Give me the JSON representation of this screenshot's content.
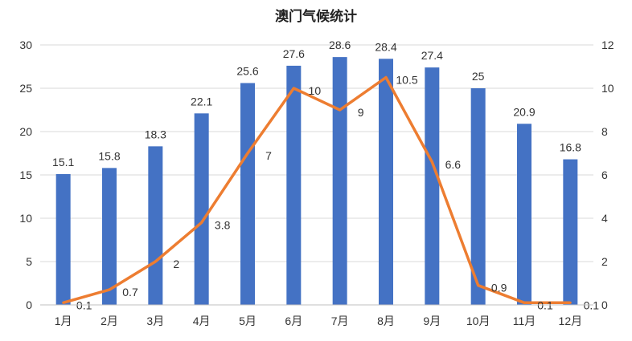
{
  "chart_data": {
    "type": "bar+line",
    "title": "澳门气候统计",
    "categories": [
      "1月",
      "2月",
      "3月",
      "4月",
      "5月",
      "6月",
      "7月",
      "8月",
      "9月",
      "10月",
      "11月",
      "12月"
    ],
    "series": [
      {
        "type": "bar",
        "axis": "left",
        "color": "#4472C4",
        "values": [
          15.1,
          15.8,
          18.3,
          22.1,
          25.6,
          27.6,
          28.6,
          28.4,
          27.4,
          25,
          20.9,
          16.8
        ]
      },
      {
        "type": "line",
        "axis": "right",
        "color": "#ED7D31",
        "values": [
          0.1,
          0.7,
          2,
          3.8,
          7,
          10,
          9,
          10.5,
          6.6,
          0.9,
          0.1,
          0.1
        ]
      }
    ],
    "y_left": {
      "min": 0,
      "max": 30,
      "ticks": [
        0,
        5,
        10,
        15,
        20,
        25,
        30
      ]
    },
    "y_right": {
      "min": 0,
      "max": 12,
      "ticks": [
        0,
        2,
        4,
        6,
        8,
        10,
        12
      ]
    },
    "grid": true,
    "legend": "none"
  }
}
